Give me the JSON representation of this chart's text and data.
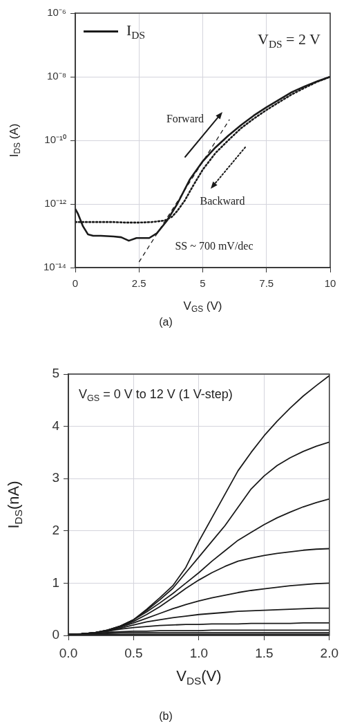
{
  "chart_data": [
    {
      "type": "line",
      "xlabel": "V$_{GS}$ (V)",
      "ylabel": "I$_{DS}$ (A)",
      "log": "y",
      "grid": true,
      "legend": "top left",
      "xlim": [
        0,
        10
      ],
      "xticks": [
        0,
        2.5,
        5,
        7.5,
        10
      ],
      "ylim": [
        1e-14,
        1e-06
      ],
      "yticks": [
        {
          "value": 1e-14,
          "label": "10⁻¹⁴"
        },
        {
          "value": 1e-12,
          "label": "10⁻¹²"
        },
        {
          "value": 1e-10,
          "label": "10⁻¹⁰"
        },
        {
          "value": 1e-08,
          "label": "10⁻⁸"
        },
        {
          "value": 1e-06,
          "label": "10⁻⁶"
        }
      ],
      "series": [
        {
          "name": "I$_{DS}$",
          "color": "#1a1a1a",
          "line_style": "solid",
          "x": [
            0,
            0.1,
            0.3,
            0.5,
            0.7,
            1,
            1.5,
            1.8,
            2.1,
            2.4,
            2.9,
            3.2,
            3.6,
            4,
            4.5,
            5,
            5.5,
            6,
            6.5,
            7,
            7.5,
            8,
            8.5,
            9,
            9.5,
            10
          ],
          "values": [
            7e-13,
            5e-13,
            2e-13,
            1.1e-13,
            1e-13,
            1e-13,
            9.5e-14,
            9e-14,
            7e-14,
            8.5e-14,
            8.5e-14,
            1.2e-13,
            3e-13,
            1e-12,
            6e-12,
            2.2e-11,
            6e-11,
            1.4e-10,
            3e-10,
            6e-10,
            1.1e-09,
            1.9e-09,
            3.3e-09,
            5e-09,
            7.2e-09,
            1e-08
          ]
        },
        {
          "color": "#1a1a1a",
          "line_style": "dotted",
          "x": [
            0,
            0.5,
            1,
            1.5,
            2,
            2.5,
            3,
            3.5,
            3.8,
            4,
            4.3,
            4.6,
            5,
            5.5,
            6,
            6.5,
            7,
            7.5,
            8,
            8.5,
            9,
            9.5,
            10
          ],
          "values": [
            2.7e-13,
            2.7e-13,
            2.7e-13,
            2.7e-13,
            2.6e-13,
            2.6e-13,
            2.7e-13,
            3e-13,
            4e-13,
            6e-13,
            1.3e-12,
            3.5e-12,
            1.2e-11,
            4e-11,
            1e-10,
            2.4e-10,
            4.8e-10,
            9e-10,
            1.6e-09,
            2.8e-09,
            4.5e-09,
            7e-09,
            1e-08
          ]
        },
        {
          "color": "#1a1a1a",
          "line_style": "dashed",
          "x": [
            2.5,
            6.05
          ],
          "values": [
            1.5e-14,
            4.5e-10
          ]
        }
      ],
      "annotations": [
        "V$_{DS}$ = 2 V",
        "Forward",
        "Backward",
        "SS ~ 700 mV/dec",
        "(a)"
      ]
    },
    {
      "type": "line",
      "xlabel": "V$_{DS}$(V)",
      "ylabel": "I$_{DS}$(nA)",
      "grid": true,
      "legend": false,
      "xlim": [
        0,
        2
      ],
      "xticks": [
        {
          "value": 0,
          "label": "0.0"
        },
        0.5,
        {
          "value": 1,
          "label": "1.0"
        },
        1.5,
        {
          "value": 2,
          "label": "2.0"
        }
      ],
      "ylim": [
        0,
        5
      ],
      "yticks": [
        0,
        1,
        2,
        3,
        4,
        5
      ],
      "x": [
        0,
        0.1,
        0.2,
        0.3,
        0.4,
        0.5,
        0.6,
        0.7,
        0.8,
        0.9,
        1,
        1.1,
        1.2,
        1.3,
        1.4,
        1.5,
        1.6,
        1.7,
        1.8,
        1.9,
        2
      ],
      "series": [
        {
          "color": "#1a1a1a",
          "values": [
            0.02,
            0.02,
            0.02,
            0.02,
            0.02,
            0.02,
            0.02,
            0.02,
            0.02,
            0.02,
            0.02,
            0.02,
            0.02,
            0.02,
            0.02,
            0.02,
            0.02,
            0.02,
            0.02,
            0.02,
            0.02
          ]
        },
        {
          "color": "#1a1a1a",
          "values": [
            0.02,
            0.02,
            0.03,
            0.04,
            0.05,
            0.05,
            0.05,
            0.05,
            0.05,
            0.05,
            0.05,
            0.05,
            0.05,
            0.05,
            0.05,
            0.05,
            0.05,
            0.05,
            0.05,
            0.05,
            0.05
          ]
        },
        {
          "color": "#1a1a1a",
          "values": [
            0.02,
            0.03,
            0.04,
            0.06,
            0.07,
            0.08,
            0.08,
            0.09,
            0.09,
            0.09,
            0.09,
            0.1,
            0.1,
            0.1,
            0.1,
            0.1,
            0.1,
            0.1,
            0.1,
            0.1,
            0.1
          ]
        },
        {
          "color": "#1a1a1a",
          "values": [
            0.02,
            0.03,
            0.05,
            0.08,
            0.12,
            0.15,
            0.17,
            0.19,
            0.2,
            0.21,
            0.21,
            0.22,
            0.22,
            0.22,
            0.23,
            0.23,
            0.23,
            0.23,
            0.24,
            0.24,
            0.24
          ]
        },
        {
          "color": "#1a1a1a",
          "values": [
            0.02,
            0.03,
            0.05,
            0.08,
            0.14,
            0.2,
            0.26,
            0.3,
            0.34,
            0.37,
            0.4,
            0.42,
            0.44,
            0.46,
            0.47,
            0.48,
            0.49,
            0.5,
            0.51,
            0.52,
            0.52
          ]
        },
        {
          "color": "#1a1a1a",
          "values": [
            0.02,
            0.03,
            0.05,
            0.09,
            0.16,
            0.24,
            0.33,
            0.42,
            0.51,
            0.59,
            0.66,
            0.72,
            0.77,
            0.82,
            0.86,
            0.89,
            0.92,
            0.95,
            0.97,
            0.99,
            1
          ]
        },
        {
          "color": "#1a1a1a",
          "values": [
            0.02,
            0.03,
            0.05,
            0.1,
            0.17,
            0.27,
            0.4,
            0.55,
            0.72,
            0.9,
            1.06,
            1.2,
            1.32,
            1.42,
            1.48,
            1.53,
            1.57,
            1.6,
            1.63,
            1.65,
            1.66
          ]
        },
        {
          "color": "#1a1a1a",
          "values": [
            0.02,
            0.03,
            0.05,
            0.1,
            0.18,
            0.3,
            0.45,
            0.62,
            0.8,
            1,
            1.2,
            1.42,
            1.62,
            1.82,
            1.97,
            2.12,
            2.25,
            2.36,
            2.46,
            2.54,
            2.61
          ]
        },
        {
          "color": "#1a1a1a",
          "values": [
            0.02,
            0.03,
            0.05,
            0.1,
            0.18,
            0.3,
            0.48,
            0.68,
            0.9,
            1.2,
            1.5,
            1.8,
            2.1,
            2.45,
            2.8,
            3.05,
            3.25,
            3.4,
            3.52,
            3.62,
            3.7
          ]
        },
        {
          "color": "#1a1a1a",
          "values": [
            0.02,
            0.03,
            0.05,
            0.1,
            0.18,
            0.3,
            0.5,
            0.72,
            0.95,
            1.3,
            1.8,
            2.25,
            2.7,
            3.15,
            3.5,
            3.82,
            4.1,
            4.35,
            4.58,
            4.78,
            4.97
          ]
        }
      ],
      "annotations": [
        "V$_{GS}$ = 0 V to 12 V (1 V-step)",
        "(b)"
      ]
    }
  ]
}
